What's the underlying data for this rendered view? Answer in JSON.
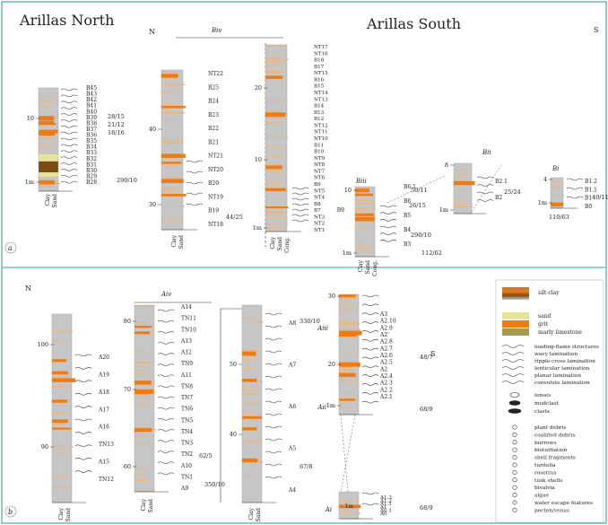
{
  "headings": {
    "north": "Arillas North",
    "south": "Arillas South",
    "compass_n": "N",
    "compass_s": "S",
    "compass_n_b": "N",
    "compass_s_b": "S",
    "panel_a": "a",
    "panel_b": "b"
  },
  "section_codes": {
    "biv": "Biv",
    "biii": "Biii",
    "bii": "Bii",
    "bi": "Bi",
    "aiv": "Aiv",
    "aiii": "Aiii",
    "aii": "Aii",
    "ai": "Ai"
  },
  "axis_words": {
    "clay": "Clay",
    "sand": "Sand",
    "cong": "Cong."
  },
  "beds": {
    "north": [
      "B45",
      "B43",
      "B42",
      "B41",
      "B40",
      "B39",
      "B38",
      "B37",
      "B36",
      "B35",
      "B34",
      "B33",
      "B32",
      "B31",
      "B30",
      "B29",
      "B28"
    ],
    "biv_left": [
      "NT22",
      "B25",
      "B24",
      "B23",
      "B22",
      "B21",
      "NT21",
      "NT20",
      "B20",
      "NT19",
      "B19",
      "NT18"
    ],
    "biv_right": [
      "NT17",
      "NT16",
      "B18",
      "B17",
      "NT15",
      "B16",
      "B15",
      "NT14",
      "NT13",
      "B14",
      "B13",
      "B12",
      "NT12",
      "NT11",
      "NT10",
      "B11",
      "B10",
      "NT9",
      "NT8",
      "NT7",
      "NT6",
      "B9",
      "NT5",
      "NT4",
      "B8",
      "B7",
      "NT3",
      "NT2",
      "NT1"
    ],
    "biii": [
      "B6.1",
      "B6",
      "B5",
      "B4",
      "B3"
    ],
    "bii": [
      "B2.1",
      "B2"
    ],
    "bi": [
      "B1.2",
      "B1.1",
      "B1",
      "B0"
    ],
    "a_first": [
      "A20",
      "A19",
      "A18",
      "A17",
      "A16",
      "TN13",
      "A15",
      "TN12"
    ],
    "aiv": [
      "A14",
      "TN11",
      "TN10",
      "A13",
      "A12",
      "TN9",
      "A11",
      "TN8",
      "TN7",
      "TN6",
      "TN5",
      "TN4",
      "TN3",
      "TN2",
      "A10",
      "TN1",
      "A9"
    ],
    "a_third": [
      "A8",
      "A7",
      "A6",
      "A5",
      "A4"
    ],
    "aii": [
      "A3",
      "A2.10",
      "A2.9",
      "A2'",
      "A2.8",
      "A2.7",
      "A2.6",
      "A2.5",
      "A2",
      "A2.4",
      "A2.3",
      "A2.2",
      "A2.1"
    ],
    "ai": [
      "A1.3",
      "A1.2",
      "A1.1",
      "A1",
      "A0.1",
      "A0"
    ]
  },
  "orientations": {
    "north": [
      "28/15",
      "21/12",
      "18/16"
    ],
    "north_lower": "290/10",
    "biv": "44/25",
    "biii_a": "50/11",
    "biii_b": "26/15",
    "biii_c": "290/10",
    "biii_d": "112/62",
    "bii": "25/24",
    "bi_a": "40/11",
    "bi_b": "110/63",
    "aiv_a": "62/5",
    "aiv_b": "350/10",
    "a3_a": "330/10",
    "a3_b": "67/8",
    "aii_a": "48/7",
    "aii_b": "68/9",
    "ai": "68/9"
  },
  "ticks": {
    "north": [
      "10",
      "1m"
    ],
    "biv_left": [
      "40",
      "30"
    ],
    "biv_right": [
      "20",
      "10",
      "1m"
    ],
    "biii": [
      "10",
      "1m"
    ],
    "bii": [
      "8",
      "1m"
    ],
    "bi": [
      "4",
      "1m"
    ],
    "a_first": [
      "100",
      "90"
    ],
    "aiv": [
      "80",
      "70",
      "60"
    ],
    "a_third": [
      "50",
      "40"
    ],
    "aii": [
      "30",
      "20",
      "1m"
    ]
  },
  "legend": {
    "lithology": [
      "silt-clay",
      "sand",
      "grit",
      "marly limestone"
    ],
    "structures": [
      "loading-flame structures",
      "wavy lamination",
      "ripple-cross lamination",
      "lenticular lamination",
      "planar lamination",
      "convolute lamination"
    ],
    "clasts": [
      "lenses",
      "mudclast",
      "clasts"
    ],
    "fossils": [
      "plant debris",
      "coalified debris",
      "burrows",
      "bioturbation",
      "shell fragments",
      "turitella",
      "rosetrus",
      "tusk shells",
      "bivalvia",
      "algae",
      "water escape features",
      "pecten/venus"
    ]
  },
  "colors": {
    "frame": "#5fb7b0",
    "orange": "#f07b12",
    "tan": "#e4b98a",
    "grey": "#c6c6c6",
    "brown": "#7a4a16",
    "yellow": "#e6e49a",
    "olive": "#a89a4a"
  }
}
